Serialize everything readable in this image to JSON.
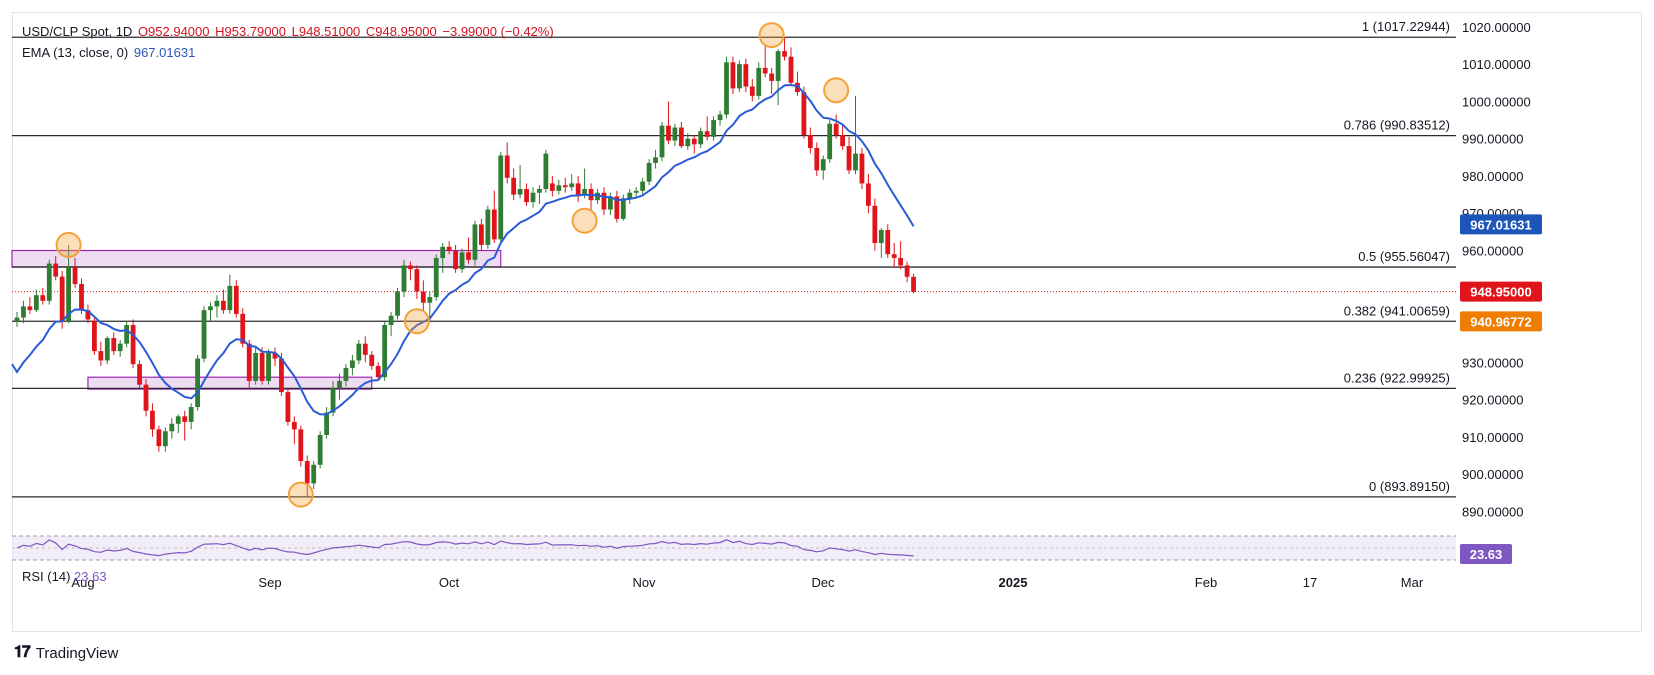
{
  "header": {
    "symbol": "USD/CLP Spot, 1D",
    "open": "O952.94000",
    "high": "H953.79000",
    "low": "L948.51000",
    "close": "C948.95000",
    "change": "−3.99000 (−0.42%)",
    "ema_label": "EMA (13, close, 0)",
    "ema_value": "967.01631"
  },
  "rsi": {
    "label": "RSI (14)",
    "value": "23.63"
  },
  "branding": "TradingView",
  "colors": {
    "up": "#2e7d32",
    "down": "#e0151b",
    "ema": "#2a5bd7",
    "rsi": "#7e57c2",
    "fib_line": "#2b2b2b",
    "zone_fill": "#ead3f0",
    "zone_stroke": "#9c27b0",
    "marker": "#f4a13a",
    "price_tag": "#e0151b",
    "ema_tag": "#1e55b8",
    "orange_tag": "#ef7d00"
  },
  "chart_data": {
    "type": "candlestick",
    "title": "USD/CLP Spot, 1D",
    "xlabel": "",
    "ylabel": "",
    "ylim": [
      885,
      1024
    ],
    "x_tick_labels": [
      "Aug",
      "Sep",
      "Oct",
      "Nov",
      "Dec",
      "2025",
      "Feb",
      "17",
      "Mar"
    ],
    "y_tick_labels": [
      "890.00000",
      "900.00000",
      "910.00000",
      "920.00000",
      "930.00000",
      "940.00000",
      "950.00000",
      "960.00000",
      "970.00000",
      "980.00000",
      "990.00000",
      "1000.00000",
      "1010.00000",
      "1020.00000"
    ],
    "fib_levels": [
      {
        "label": "1 (1017.22944)",
        "value": 1017.22944
      },
      {
        "label": "0.786 (990.83512)",
        "value": 990.83512
      },
      {
        "label": "0.5 (955.56047)",
        "value": 955.56047
      },
      {
        "label": "0.382 (941.00659)",
        "value": 941.00659
      },
      {
        "label": "0.236 (922.99925)",
        "value": 922.99925
      },
      {
        "label": "0 (893.89150)",
        "value": 893.8915
      }
    ],
    "price_tags": [
      {
        "label": "967.01631",
        "value": 967.01631,
        "kind": "ema"
      },
      {
        "label": "948.95000",
        "value": 948.95,
        "kind": "price"
      },
      {
        "label": "940.96772",
        "value": 940.96772,
        "kind": "orange"
      }
    ],
    "current_price": 948.95,
    "zones": [
      {
        "from_index": 0,
        "to_index": 75,
        "low": 955.6,
        "high": 960.0
      },
      {
        "from_index": 11,
        "to_index": 55,
        "low": 922.8,
        "high": 926.0
      }
    ],
    "marker_points": [
      {
        "index": 8,
        "value": 961.5
      },
      {
        "index": 44,
        "value": 894.5
      },
      {
        "index": 62,
        "value": 941.0
      },
      {
        "index": 88,
        "value": 968.0
      },
      {
        "index": 117,
        "value": 1017.8
      },
      {
        "index": 127,
        "value": 1003.0
      }
    ],
    "rsi_series": {
      "name": "RSI (14)",
      "last": 23.63
    },
    "series": [
      {
        "name": "USD/CLP",
        "ohlc": [
          [
            941.0,
            943.5,
            939.5,
            942.0
          ],
          [
            942.0,
            946.5,
            940.5,
            945.0
          ],
          [
            945.0,
            947.5,
            943.0,
            944.0
          ],
          [
            944.0,
            949.5,
            943.5,
            948.0
          ],
          [
            948.0,
            950.0,
            945.5,
            946.5
          ],
          [
            946.5,
            957.5,
            945.5,
            956.5
          ],
          [
            956.5,
            958.5,
            952.0,
            953.0
          ],
          [
            953.0,
            954.5,
            939.0,
            941.0
          ],
          [
            941.0,
            961.5,
            940.5,
            955.5
          ],
          [
            955.5,
            958.0,
            950.0,
            951.0
          ],
          [
            951.0,
            952.5,
            943.0,
            944.0
          ],
          [
            944.0,
            945.5,
            940.5,
            941.5
          ],
          [
            941.0,
            942.0,
            932.0,
            933.0
          ],
          [
            933.0,
            935.5,
            929.0,
            930.5
          ],
          [
            930.5,
            937.0,
            929.5,
            936.5
          ],
          [
            936.5,
            938.0,
            932.0,
            933.0
          ],
          [
            933.0,
            936.0,
            931.5,
            935.0
          ],
          [
            935.0,
            941.0,
            934.0,
            940.0
          ],
          [
            940.0,
            941.5,
            928.5,
            929.5
          ],
          [
            929.5,
            930.5,
            923.0,
            924.0
          ],
          [
            924.0,
            925.5,
            915.5,
            917.0
          ],
          [
            917.0,
            919.0,
            910.0,
            912.0
          ],
          [
            912.0,
            913.0,
            906.0,
            907.5
          ],
          [
            907.5,
            912.5,
            906.0,
            911.5
          ],
          [
            911.5,
            915.0,
            909.5,
            913.5
          ],
          [
            913.5,
            916.0,
            911.0,
            915.5
          ],
          [
            915.5,
            917.0,
            909.0,
            914.0
          ],
          [
            914.0,
            919.0,
            912.0,
            918.0
          ],
          [
            918.0,
            932.0,
            917.0,
            931.0
          ],
          [
            931.0,
            945.0,
            930.0,
            944.0
          ],
          [
            944.0,
            946.0,
            941.0,
            945.0
          ],
          [
            945.0,
            948.0,
            942.0,
            946.5
          ],
          [
            946.5,
            949.5,
            943.0,
            944.0
          ],
          [
            944.0,
            953.5,
            943.0,
            950.5
          ],
          [
            950.5,
            952.0,
            942.0,
            943.0
          ],
          [
            943.0,
            944.5,
            934.0,
            935.0
          ],
          [
            935.0,
            936.0,
            923.0,
            925.0
          ],
          [
            925.0,
            934.0,
            924.0,
            932.5
          ],
          [
            932.5,
            934.0,
            924.0,
            925.0
          ],
          [
            925.0,
            933.5,
            924.0,
            932.5
          ],
          [
            932.5,
            934.0,
            929.0,
            931.0
          ],
          [
            931.0,
            932.5,
            921.0,
            922.0
          ],
          [
            922.0,
            923.0,
            913.0,
            914.0
          ],
          [
            914.0,
            915.5,
            908.0,
            912.0
          ],
          [
            912.0,
            913.0,
            902.0,
            903.5
          ],
          [
            903.5,
            905.0,
            893.9,
            897.5
          ],
          [
            897.5,
            903.5,
            896.0,
            902.5
          ],
          [
            902.5,
            911.5,
            901.5,
            910.5
          ],
          [
            910.5,
            918.0,
            909.5,
            916.5
          ],
          [
            916.5,
            925.0,
            915.5,
            923.0
          ],
          [
            923.0,
            927.0,
            920.0,
            925.0
          ],
          [
            925.0,
            929.5,
            923.5,
            928.5
          ],
          [
            928.5,
            932.0,
            926.5,
            930.5
          ],
          [
            930.5,
            936.0,
            929.5,
            935.0
          ],
          [
            935.0,
            937.0,
            930.0,
            932.0
          ],
          [
            932.0,
            933.0,
            928.0,
            929.0
          ],
          [
            929.0,
            930.0,
            925.0,
            926.0
          ],
          [
            926.0,
            941.0,
            925.0,
            940.0
          ],
          [
            940.0,
            943.5,
            937.0,
            942.5
          ],
          [
            942.5,
            950.0,
            941.5,
            949.0
          ],
          [
            949.0,
            957.5,
            947.5,
            956.0
          ],
          [
            956.0,
            957.0,
            952.0,
            955.0
          ],
          [
            955.0,
            956.0,
            947.0,
            949.0
          ],
          [
            949.0,
            952.0,
            944.0,
            946.0
          ],
          [
            946.0,
            949.0,
            941.0,
            947.5
          ],
          [
            947.5,
            959.0,
            946.5,
            958.0
          ],
          [
            958.0,
            962.0,
            954.0,
            961.0
          ],
          [
            961.0,
            962.5,
            959.0,
            960.0
          ],
          [
            960.0,
            961.5,
            954.0,
            955.0
          ],
          [
            955.0,
            960.5,
            954.0,
            959.5
          ],
          [
            959.5,
            963.5,
            956.5,
            957.5
          ],
          [
            957.5,
            968.0,
            956.0,
            967.0
          ],
          [
            967.0,
            968.5,
            960.0,
            961.5
          ],
          [
            961.5,
            972.0,
            960.5,
            971.0
          ],
          [
            971.0,
            976.0,
            962.0,
            963.0
          ],
          [
            963.0,
            986.5,
            962.0,
            985.5
          ],
          [
            985.5,
            989.0,
            978.0,
            979.5
          ],
          [
            979.5,
            982.0,
            973.5,
            975.0
          ],
          [
            975.0,
            983.0,
            974.0,
            976.5
          ],
          [
            976.5,
            978.0,
            972.0,
            973.0
          ],
          [
            973.0,
            977.0,
            971.5,
            975.5
          ],
          [
            975.5,
            977.5,
            972.5,
            976.5
          ],
          [
            976.5,
            987.0,
            975.5,
            986.0
          ],
          [
            978.0,
            980.0,
            974.5,
            976.0
          ],
          [
            976.0,
            979.0,
            975.0,
            977.5
          ],
          [
            977.5,
            979.5,
            975.5,
            977.0
          ],
          [
            977.0,
            980.5,
            976.0,
            978.0
          ],
          [
            978.0,
            980.0,
            973.0,
            975.0
          ],
          [
            975.0,
            982.0,
            974.0,
            976.5
          ],
          [
            976.5,
            978.0,
            970.5,
            973.5
          ],
          [
            973.5,
            976.5,
            972.5,
            975.5
          ],
          [
            975.5,
            977.0,
            969.5,
            971.0
          ],
          [
            971.0,
            975.5,
            969.5,
            974.5
          ],
          [
            974.5,
            976.0,
            967.5,
            968.5
          ],
          [
            968.5,
            975.0,
            968.0,
            974.0
          ],
          [
            974.0,
            976.5,
            972.5,
            975.5
          ],
          [
            975.5,
            977.0,
            974.0,
            976.0
          ],
          [
            976.0,
            979.5,
            975.0,
            978.5
          ],
          [
            978.5,
            984.5,
            977.5,
            983.5
          ],
          [
            983.5,
            987.0,
            982.0,
            985.0
          ],
          [
            985.0,
            994.5,
            984.0,
            993.5
          ],
          [
            993.5,
            1000.0,
            988.5,
            989.5
          ],
          [
            989.5,
            994.0,
            988.0,
            993.0
          ],
          [
            993.0,
            994.5,
            987.5,
            988.0
          ],
          [
            988.0,
            991.5,
            987.0,
            990.0
          ],
          [
            990.0,
            991.0,
            986.0,
            988.5
          ],
          [
            988.5,
            993.0,
            987.5,
            992.0
          ],
          [
            992.0,
            996.0,
            989.5,
            990.5
          ],
          [
            990.5,
            996.0,
            989.5,
            995.0
          ],
          [
            995.0,
            997.5,
            993.5,
            996.5
          ],
          [
            996.5,
            1012.0,
            995.5,
            1010.5
          ],
          [
            1010.5,
            1012.0,
            1002.0,
            1003.5
          ],
          [
            1003.5,
            1011.0,
            1002.5,
            1010.0
          ],
          [
            1010.0,
            1011.5,
            1002.5,
            1004.0
          ],
          [
            1004.0,
            1006.0,
            1000.0,
            1001.5
          ],
          [
            1001.5,
            1010.5,
            1000.5,
            1009.0
          ],
          [
            1009.0,
            1015.0,
            1006.5,
            1007.5
          ],
          [
            1007.5,
            1009.0,
            1002.0,
            1005.5
          ],
          [
            1005.5,
            1014.0,
            999.0,
            1013.5
          ],
          [
            1013.5,
            1017.3,
            1011.0,
            1012.0
          ],
          [
            1012.0,
            1014.5,
            1004.5,
            1005.0
          ],
          [
            1005.0,
            1008.0,
            1001.5,
            1002.5
          ],
          [
            1002.5,
            1004.0,
            990.0,
            991.0
          ],
          [
            991.0,
            993.0,
            986.0,
            987.5
          ],
          [
            987.5,
            989.0,
            980.0,
            981.5
          ],
          [
            981.5,
            985.5,
            979.0,
            984.5
          ],
          [
            984.5,
            995.0,
            983.5,
            994.0
          ],
          [
            994.0,
            996.5,
            990.0,
            991.0
          ],
          [
            991.0,
            993.5,
            987.0,
            988.0
          ],
          [
            988.0,
            990.5,
            980.5,
            981.5
          ],
          [
            981.5,
            1001.5,
            980.5,
            986.0
          ],
          [
            986.0,
            987.5,
            976.5,
            978.0
          ],
          [
            978.0,
            980.5,
            970.0,
            972.0
          ],
          [
            972.0,
            974.0,
            960.0,
            962.0
          ],
          [
            962.0,
            966.0,
            958.0,
            965.5
          ],
          [
            965.5,
            967.0,
            958.0,
            959.0
          ],
          [
            959.0,
            962.0,
            955.5,
            958.0
          ],
          [
            958.0,
            962.5,
            955.0,
            956.0
          ],
          [
            956.0,
            957.0,
            951.5,
            952.94
          ],
          [
            952.94,
            953.79,
            948.51,
            948.95
          ]
        ]
      }
    ]
  }
}
